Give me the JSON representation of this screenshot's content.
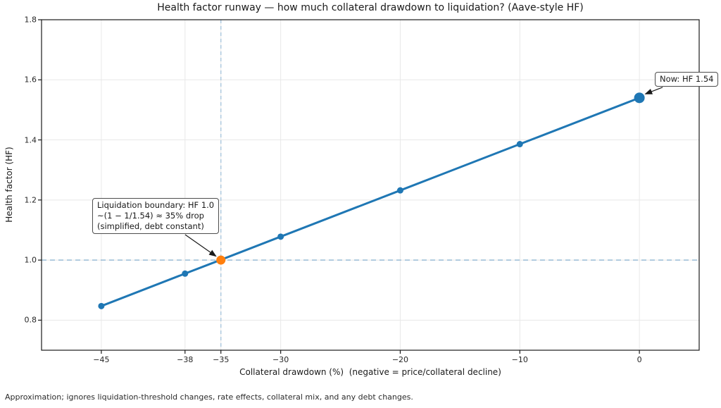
{
  "chart_data": {
    "type": "line",
    "title": "Health factor runway — how much collateral drawdown to liquidation? (Aave-style HF)",
    "xlabel": "Collateral drawdown (%)  (negative = price/collateral decline)",
    "ylabel": "Health factor (HF)",
    "x": [
      -45,
      -38,
      -35,
      -30,
      -20,
      -10,
      0
    ],
    "y": [
      0.847,
      0.955,
      1.001,
      1.078,
      1.232,
      1.386,
      1.54
    ],
    "xlim": [
      -50,
      5
    ],
    "ylim": [
      0.7,
      1.8
    ],
    "xticks": [
      -45,
      -38,
      -35,
      -30,
      -20,
      -10,
      0
    ],
    "yticks": [
      0.8,
      1.0,
      1.2,
      1.4,
      1.6,
      1.8
    ],
    "grid": true,
    "legend": "none",
    "line_color": "#1f77b4",
    "marker_color": "#1f77b4",
    "grid_color": "#e8e8e8",
    "spine_color": "#1a1a1a",
    "boundary_hline": {
      "y": 1.0,
      "style": "dashed",
      "color": "#8fb6d2"
    },
    "boundary_vline": {
      "x": -35,
      "style": "dashed",
      "color": "#a9c7dd"
    },
    "now_point": {
      "x": 0,
      "y": 1.54,
      "color": "#1f77b4"
    },
    "liquidation_point": {
      "x": -35,
      "y": 1.0,
      "color": "#ff7f0e"
    },
    "annotations": [
      {
        "id": "now",
        "text": "Now: HF 1.54",
        "target_x": 0,
        "target_y": 1.54
      },
      {
        "id": "liquidation",
        "text": "Liquidation boundary: HF 1.0\n~(1 − 1/1.54) ≈ 35% drop\n(simplified, debt constant)",
        "target_x": -35,
        "target_y": 1.0
      }
    ],
    "footnote": "Approximation; ignores liquidation-threshold changes, rate effects, collateral mix, and any debt changes."
  }
}
